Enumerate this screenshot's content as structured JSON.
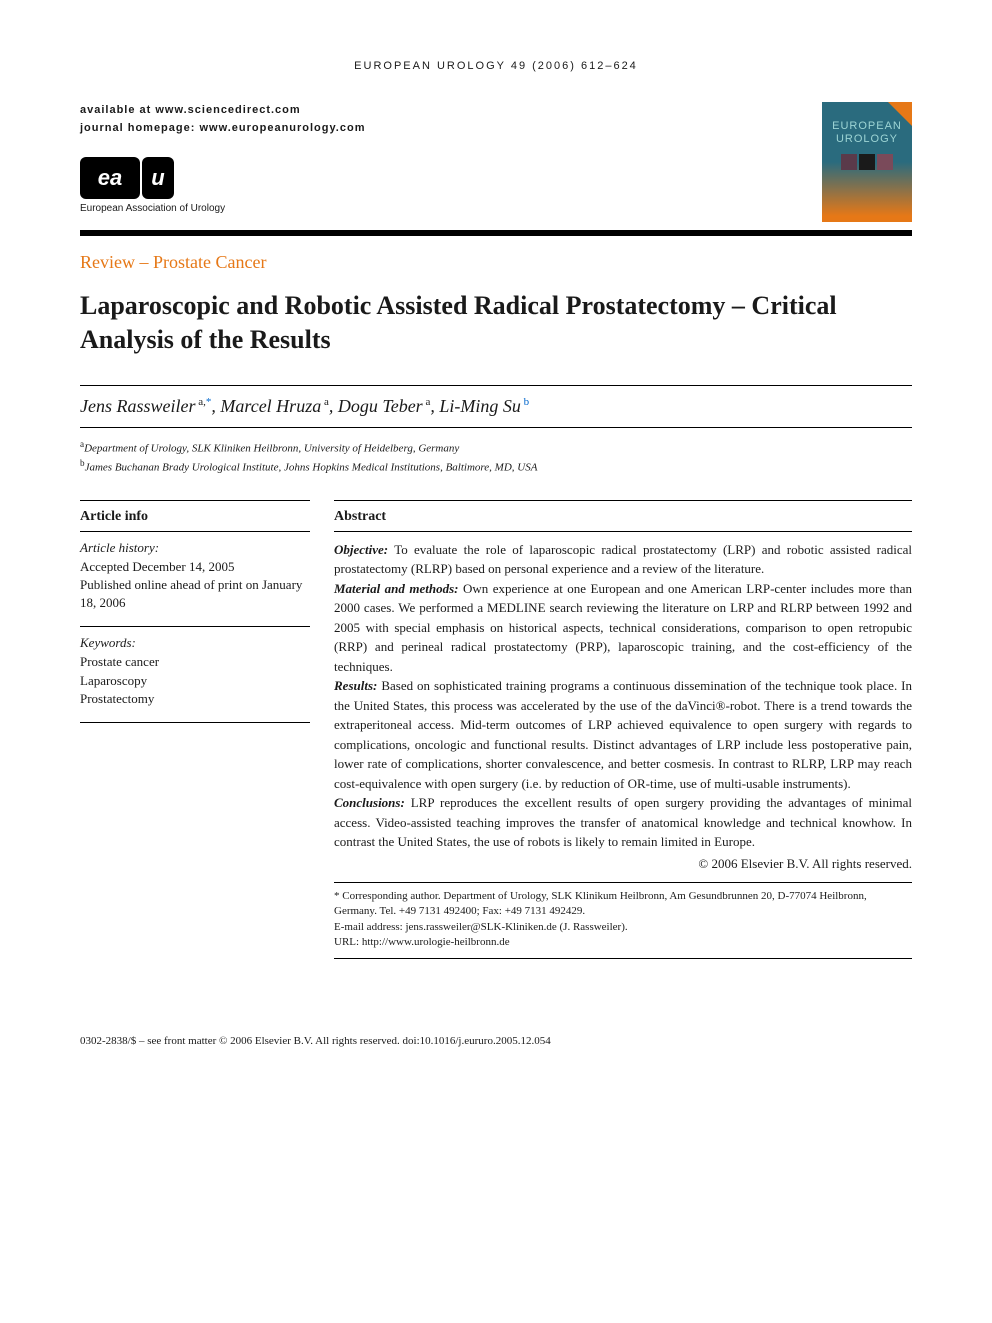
{
  "journal_header": "EUROPEAN UROLOGY 49 (2006) 612–624",
  "availability": {
    "line1": "available at www.sciencedirect.com",
    "line2": "journal homepage: www.europeanurology.com"
  },
  "logo": {
    "text_left": "ea",
    "text_right": "u",
    "subtitle": "European Association of Urology"
  },
  "cover": {
    "line1": "EUROPEAN",
    "line2": "UROLOGY"
  },
  "section_label": "Review – Prostate Cancer",
  "title": "Laparoscopic and Robotic Assisted Radical Prostatectomy – Critical Analysis of the Results",
  "authors_html": "Jens Rassweiler|a,*|, Marcel Hruza|a|, Dogu Teber|a|, Li-Ming Su|b|",
  "authors": [
    {
      "name": "Jens Rassweiler",
      "sup": "a,*",
      "star": true
    },
    {
      "name": "Marcel Hruza",
      "sup": "a"
    },
    {
      "name": "Dogu Teber",
      "sup": "a"
    },
    {
      "name": "Li-Ming Su",
      "sup": "b",
      "blue": true
    }
  ],
  "affiliations": [
    {
      "sup": "a",
      "text": "Department of Urology, SLK Kliniken Heilbronn, University of Heidelberg, Germany"
    },
    {
      "sup": "b",
      "text": "James Buchanan Brady Urological Institute, Johns Hopkins Medical Institutions, Baltimore, MD, USA"
    }
  ],
  "article_info": {
    "heading": "Article info",
    "history_label": "Article history:",
    "history_text": "Accepted December 14, 2005\nPublished online ahead of print on January 18, 2006",
    "keywords_label": "Keywords:",
    "keywords": [
      "Prostate cancer",
      "Laparoscopy",
      "Prostatectomy"
    ]
  },
  "abstract": {
    "heading": "Abstract",
    "sections": [
      {
        "label": "Objective:",
        "text": " To evaluate the role of laparoscopic radical prostatectomy (LRP) and robotic assisted radical prostatectomy (RLRP) based on personal experience and a review of the literature."
      },
      {
        "label": "Material and methods:",
        "text": " Own experience at one European and one American LRP-center includes more than 2000 cases. We performed a MEDLINE search reviewing the literature on LRP and RLRP between 1992 and 2005 with special emphasis on historical aspects, technical considerations, comparison to open retropubic (RRP) and perineal radical prostatectomy (PRP), laparoscopic training, and the cost-efficiency of the techniques."
      },
      {
        "label": "Results:",
        "text": " Based on sophisticated training programs a continuous dissemination of the technique took place. In the United States, this process was accelerated by the use of the daVinci®-robot. There is a trend towards the extraperitoneal access. Mid-term outcomes of LRP achieved equivalence to open surgery with regards to complications, oncologic and functional results. Distinct advantages of LRP include less postoperative pain, lower rate of complications, shorter convalescence, and better cosmesis. In contrast to RLRP, LRP may reach cost-equivalence with open surgery (i.e. by reduction of OR-time, use of multi-usable instruments)."
      },
      {
        "label": "Conclusions:",
        "text": " LRP reproduces the excellent results of open surgery providing the advantages of minimal access. Video-assisted teaching improves the transfer of anatomical knowledge and technical knowhow. In contrast the United States, the use of robots is likely to remain limited in Europe."
      }
    ],
    "copyright": "© 2006 Elsevier B.V. All rights reserved."
  },
  "corresponding": {
    "star": "*",
    "text": " Corresponding author. Department of Urology, SLK Klinikum Heilbronn, Am Gesundbrunnen 20, D-77074 Heilbronn, Germany. Tel. +49 7131 492400; Fax: +49 7131 492429.",
    "email_label": "E-mail address: ",
    "email": "jens.rassweiler@SLK-Kliniken.de",
    "email_suffix": " (J. Rassweiler).",
    "url_label": "URL: ",
    "url": "http://www.urologie-heilbronn.de"
  },
  "footer": "0302-2838/$ – see front matter © 2006 Elsevier B.V. All rights reserved.   doi:10.1016/j.eururo.2005.12.054",
  "colors": {
    "accent": "#e67817",
    "link": "#0066cc",
    "cover_bg": "#2a6b7e"
  }
}
